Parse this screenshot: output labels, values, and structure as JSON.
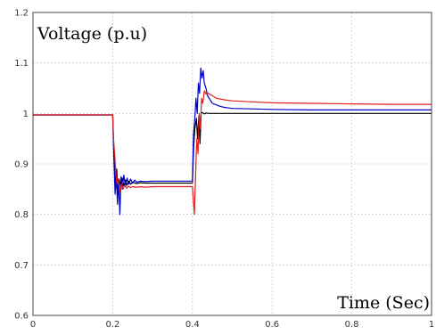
{
  "chart_data": {
    "type": "line",
    "ylabel": "Voltage (p.u)",
    "xlabel": "Time (Sec)",
    "xlim": [
      0,
      1
    ],
    "ylim": [
      0.6,
      1.2
    ],
    "xticks": [
      0,
      0.2,
      0.4,
      0.6,
      0.8,
      1
    ],
    "xtick_labels": [
      "0",
      "0.2",
      "0.4",
      "0.6",
      "0.8",
      "1"
    ],
    "yticks": [
      0.6,
      0.7,
      0.8,
      0.9,
      1,
      1.1,
      1.2
    ],
    "ytick_labels": [
      "0.6",
      "0.7",
      "0.8",
      "0.9",
      "1",
      "1.1",
      "1.2"
    ],
    "grid": true,
    "series": [
      {
        "color": "#000000",
        "x": [
          0,
          0.2,
          0.203,
          0.207,
          0.21,
          0.213,
          0.216,
          0.22,
          0.224,
          0.228,
          0.232,
          0.236,
          0.24,
          0.245,
          0.25,
          0.26,
          0.27,
          0.28,
          0.3,
          0.35,
          0.4,
          0.403,
          0.406,
          0.41,
          0.413,
          0.416,
          0.419,
          0.422,
          0.425,
          0.43,
          0.435,
          0.44,
          0.45,
          0.5,
          0.6,
          0.7,
          0.8,
          0.9,
          1.0
        ],
        "y": [
          0.997,
          0.997,
          0.93,
          0.85,
          0.89,
          0.84,
          0.87,
          0.855,
          0.872,
          0.856,
          0.868,
          0.858,
          0.866,
          0.86,
          0.864,
          0.861,
          0.863,
          0.862,
          0.862,
          0.862,
          0.862,
          0.93,
          0.97,
          0.99,
          0.95,
          0.995,
          0.94,
          1.0,
          1.002,
          0.999,
          1.001,
          1.0,
          1.0,
          1.0,
          1.0,
          1.0,
          1.0,
          1.0,
          1.0
        ]
      },
      {
        "color": "#0000cc",
        "x": [
          0,
          0.2,
          0.203,
          0.206,
          0.209,
          0.212,
          0.215,
          0.218,
          0.221,
          0.224,
          0.228,
          0.232,
          0.236,
          0.24,
          0.245,
          0.25,
          0.255,
          0.26,
          0.27,
          0.28,
          0.3,
          0.35,
          0.4,
          0.403,
          0.406,
          0.409,
          0.412,
          0.415,
          0.418,
          0.421,
          0.424,
          0.427,
          0.43,
          0.434,
          0.438,
          0.442,
          0.446,
          0.45,
          0.46,
          0.47,
          0.48,
          0.5,
          0.55,
          0.6,
          0.7,
          0.8,
          0.9,
          1.0
        ],
        "y": [
          0.997,
          0.997,
          0.91,
          0.84,
          0.88,
          0.82,
          0.87,
          0.8,
          0.875,
          0.85,
          0.878,
          0.855,
          0.872,
          0.86,
          0.87,
          0.862,
          0.868,
          0.864,
          0.866,
          0.865,
          0.866,
          0.866,
          0.866,
          0.96,
          0.99,
          1.03,
          1.0,
          1.06,
          1.04,
          1.09,
          1.07,
          1.085,
          1.06,
          1.05,
          1.035,
          1.03,
          1.025,
          1.02,
          1.017,
          1.014,
          1.012,
          1.01,
          1.009,
          1.008,
          1.007,
          1.007,
          1.007,
          1.007
        ]
      },
      {
        "color": "#e02020",
        "x": [
          0,
          0.2,
          0.202,
          0.205,
          0.208,
          0.211,
          0.214,
          0.218,
          0.222,
          0.226,
          0.23,
          0.235,
          0.24,
          0.245,
          0.25,
          0.26,
          0.27,
          0.28,
          0.3,
          0.35,
          0.4,
          0.405,
          0.408,
          0.411,
          0.414,
          0.417,
          0.42,
          0.423,
          0.426,
          0.43,
          0.435,
          0.44,
          0.45,
          0.46,
          0.48,
          0.5,
          0.55,
          0.6,
          0.7,
          0.8,
          0.9,
          1.0
        ],
        "y": [
          0.997,
          0.997,
          0.95,
          0.92,
          0.88,
          0.86,
          0.87,
          0.845,
          0.86,
          0.85,
          0.858,
          0.852,
          0.856,
          0.853,
          0.855,
          0.854,
          0.855,
          0.854,
          0.855,
          0.855,
          0.855,
          0.8,
          0.88,
          0.95,
          0.92,
          1.0,
          0.97,
          1.03,
          1.02,
          1.045,
          1.038,
          1.04,
          1.035,
          1.03,
          1.027,
          1.025,
          1.023,
          1.021,
          1.02,
          1.019,
          1.018,
          1.018
        ]
      }
    ]
  }
}
